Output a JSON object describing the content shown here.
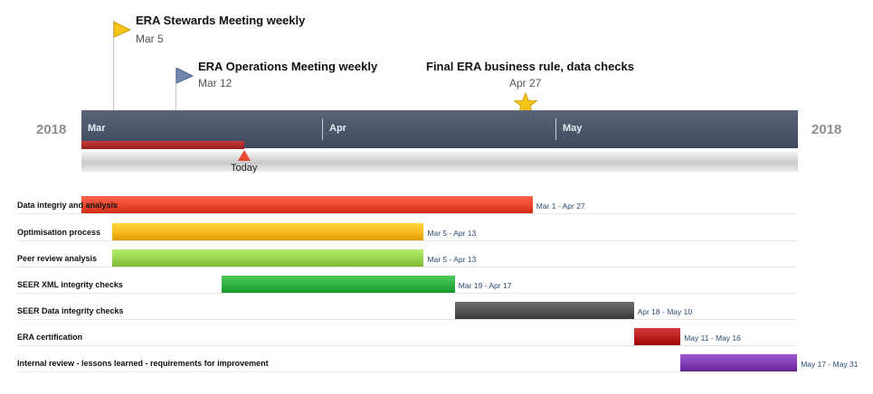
{
  "chart_data": {
    "type": "gantt",
    "year_left": "2018",
    "year_right": "2018",
    "months": [
      "Mar",
      "Apr",
      "May"
    ],
    "milestones": [
      {
        "title": "ERA Stewards Meeting weekly",
        "date_label": "Mar 5",
        "date": "2018-03-05",
        "icon": "flag-icon",
        "color": "#f5c518"
      },
      {
        "title": "ERA Operations Meeting weekly",
        "date_label": "Mar 12",
        "date": "2018-03-12",
        "icon": "flag-icon",
        "color": "#6f86ad"
      },
      {
        "title": "Final ERA business rule, data checks",
        "date_label": "Apr 27",
        "date": "2018-04-27",
        "icon": "star-icon",
        "color": "#f5c518"
      }
    ],
    "today": {
      "label": "Today",
      "date": "2018-03-25"
    },
    "tasks": [
      {
        "name": "Data integriy and analysis",
        "start": "2018-03-01",
        "end": "2018-04-27",
        "range_label": "Mar 1 - Apr 27",
        "color": "#e8452c"
      },
      {
        "name": "Optimisation process",
        "start": "2018-03-05",
        "end": "2018-04-13",
        "range_label": "Mar 5 - Apr 13",
        "color": "#f7b51d"
      },
      {
        "name": "Peer review analysis",
        "start": "2018-03-05",
        "end": "2018-04-13",
        "range_label": "Mar 5 - Apr 13",
        "color": "#93d14b"
      },
      {
        "name": "SEER XML integrity checks",
        "start": "2018-03-19",
        "end": "2018-04-17",
        "range_label": "Mar 19 - Apr 17",
        "color": "#2eae3f"
      },
      {
        "name": "SEER Data integrity checks",
        "start": "2018-04-18",
        "end": "2018-05-10",
        "range_label": "Apr 18 - May 10",
        "color": "#505050"
      },
      {
        "name": "ERA certification",
        "start": "2018-05-11",
        "end": "2018-05-16",
        "range_label": "May 11 - May 16",
        "color": "#b61c1c"
      },
      {
        "name": "Internal review - lessons learned - requirements for improvement",
        "start": "2018-05-17",
        "end": "2018-05-31",
        "range_label": "May 17 - May 31",
        "color": "#7d3bb0"
      }
    ]
  }
}
